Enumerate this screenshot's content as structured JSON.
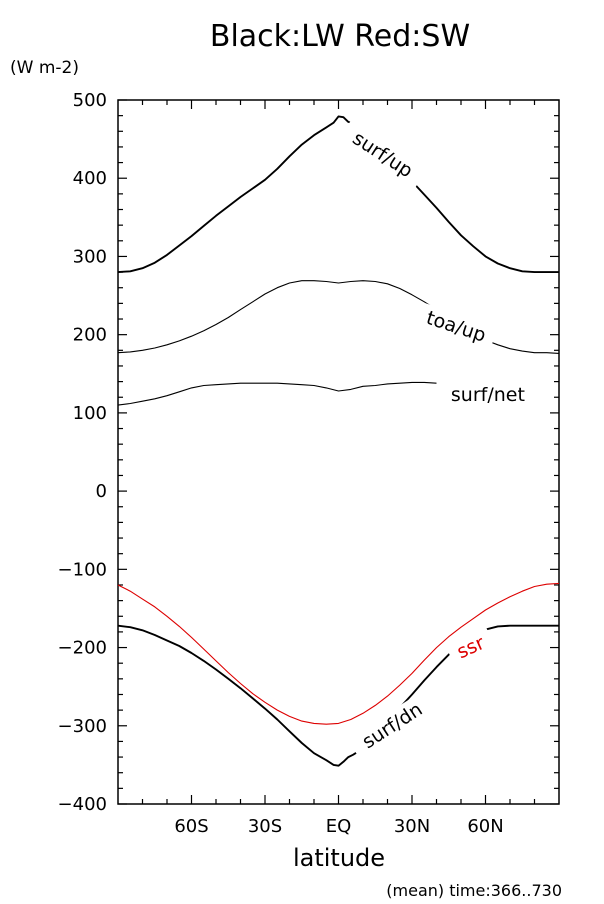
{
  "chart_data": {
    "type": "line",
    "title": "Black:LW   Red:SW",
    "units": "(W m-2)",
    "xlabel": "latitude",
    "footnote": "(mean) time:366..730",
    "xlim": [
      -90,
      90
    ],
    "ylim": [
      -400,
      500
    ],
    "x_ticks": [
      {
        "value": -60,
        "label": "60S"
      },
      {
        "value": -30,
        "label": "30S"
      },
      {
        "value": 0,
        "label": "EQ"
      },
      {
        "value": 30,
        "label": "30N"
      },
      {
        "value": 60,
        "label": "60N"
      }
    ],
    "y_ticks": [
      {
        "value": 500,
        "label": "500"
      },
      {
        "value": 400,
        "label": "400"
      },
      {
        "value": 300,
        "label": "300"
      },
      {
        "value": 200,
        "label": "200"
      },
      {
        "value": 100,
        "label": "100"
      },
      {
        "value": 0,
        "label": "0"
      },
      {
        "value": -100,
        "label": "−100"
      },
      {
        "value": -200,
        "label": "−200"
      },
      {
        "value": -300,
        "label": "−300"
      },
      {
        "value": -400,
        "label": "−400"
      }
    ],
    "series": [
      {
        "name": "surf/up",
        "color": "#000000",
        "x": [
          -90,
          -85,
          -80,
          -75,
          -70,
          -65,
          -60,
          -55,
          -50,
          -45,
          -40,
          -35,
          -30,
          -25,
          -20,
          -15,
          -10,
          -5,
          -2,
          0,
          2,
          4,
          6,
          8,
          10,
          15,
          20,
          25,
          30,
          35,
          40,
          45,
          50,
          55,
          60,
          65,
          70,
          75,
          80,
          85,
          90
        ],
        "y": [
          280,
          281,
          285,
          292,
          302,
          314,
          326,
          339,
          352,
          364,
          376,
          387,
          398,
          412,
          428,
          443,
          455,
          465,
          471,
          479,
          478,
          472,
          470,
          466,
          462,
          450,
          433,
          415,
          396,
          379,
          362,
          344,
          327,
          313,
          300,
          291,
          285,
          281,
          280,
          280,
          280
        ],
        "label": {
          "x": 18,
          "y": 430
        }
      },
      {
        "name": "toa/up",
        "color": "#000000",
        "x": [
          -90,
          -85,
          -80,
          -75,
          -70,
          -65,
          -60,
          -55,
          -50,
          -45,
          -40,
          -35,
          -30,
          -25,
          -20,
          -15,
          -10,
          -5,
          0,
          5,
          10,
          15,
          20,
          25,
          30,
          35,
          40,
          45,
          50,
          55,
          60,
          65,
          70,
          75,
          80,
          85,
          90
        ],
        "y": [
          177,
          178,
          180,
          183,
          187,
          192,
          198,
          205,
          213,
          222,
          232,
          242,
          252,
          260,
          266,
          269,
          269,
          268,
          266,
          268,
          269,
          268,
          265,
          259,
          251,
          242,
          232,
          222,
          211,
          201,
          193,
          187,
          182,
          179,
          177,
          177,
          176
        ],
        "label": {
          "x": 48,
          "y": 210
        }
      },
      {
        "name": "surf/net",
        "color": "#000000",
        "x": [
          -90,
          -85,
          -80,
          -75,
          -70,
          -65,
          -60,
          -55,
          -50,
          -45,
          -40,
          -35,
          -30,
          -25,
          -20,
          -15,
          -10,
          -5,
          0,
          5,
          10,
          15,
          20,
          25,
          30,
          35,
          40
        ],
        "y": [
          110,
          112,
          115,
          118,
          122,
          127,
          132,
          135,
          136,
          137,
          138,
          138,
          138,
          138,
          137,
          136,
          135,
          132,
          128,
          130,
          134,
          135,
          137,
          138,
          139,
          139,
          138
        ],
        "label": {
          "x": 61,
          "y": 123
        }
      },
      {
        "name": "ssr",
        "color": "#dd0000",
        "x": [
          -90,
          -85,
          -80,
          -75,
          -70,
          -65,
          -60,
          -55,
          -50,
          -45,
          -40,
          -35,
          -30,
          -25,
          -20,
          -15,
          -10,
          -5,
          0,
          5,
          10,
          15,
          20,
          25,
          30,
          35,
          40,
          45,
          50,
          55,
          60,
          65,
          70,
          75,
          80,
          85,
          90
        ],
        "y": [
          -120,
          -128,
          -138,
          -148,
          -160,
          -173,
          -187,
          -202,
          -217,
          -232,
          -246,
          -259,
          -270,
          -280,
          -288,
          -294,
          -297,
          -298,
          -297,
          -292,
          -284,
          -274,
          -262,
          -248,
          -233,
          -216,
          -200,
          -186,
          -174,
          -163,
          -152,
          -143,
          -135,
          -128,
          -122,
          -119,
          -118
        ],
        "label": {
          "x": 54,
          "y": -200
        }
      },
      {
        "name": "surf/dn",
        "color": "#000000",
        "x": [
          -90,
          -85,
          -80,
          -75,
          -70,
          -65,
          -60,
          -55,
          -50,
          -45,
          -40,
          -35,
          -30,
          -25,
          -20,
          -15,
          -10,
          -5,
          -2,
          0,
          2,
          4,
          6,
          8,
          10,
          15,
          20,
          25,
          30,
          35,
          40,
          45,
          50,
          55,
          60,
          65,
          70,
          75,
          80,
          85,
          90
        ],
        "y": [
          -172,
          -174,
          -178,
          -184,
          -191,
          -198,
          -207,
          -217,
          -228,
          -240,
          -252,
          -265,
          -278,
          -292,
          -307,
          -322,
          -335,
          -344,
          -350,
          -351,
          -346,
          -340,
          -337,
          -333,
          -328,
          -313,
          -296,
          -277,
          -260,
          -242,
          -225,
          -209,
          -195,
          -185,
          -177,
          -173,
          -172,
          -172,
          -172,
          -172,
          -172
        ],
        "label": {
          "x": 22,
          "y": -300
        }
      }
    ]
  }
}
